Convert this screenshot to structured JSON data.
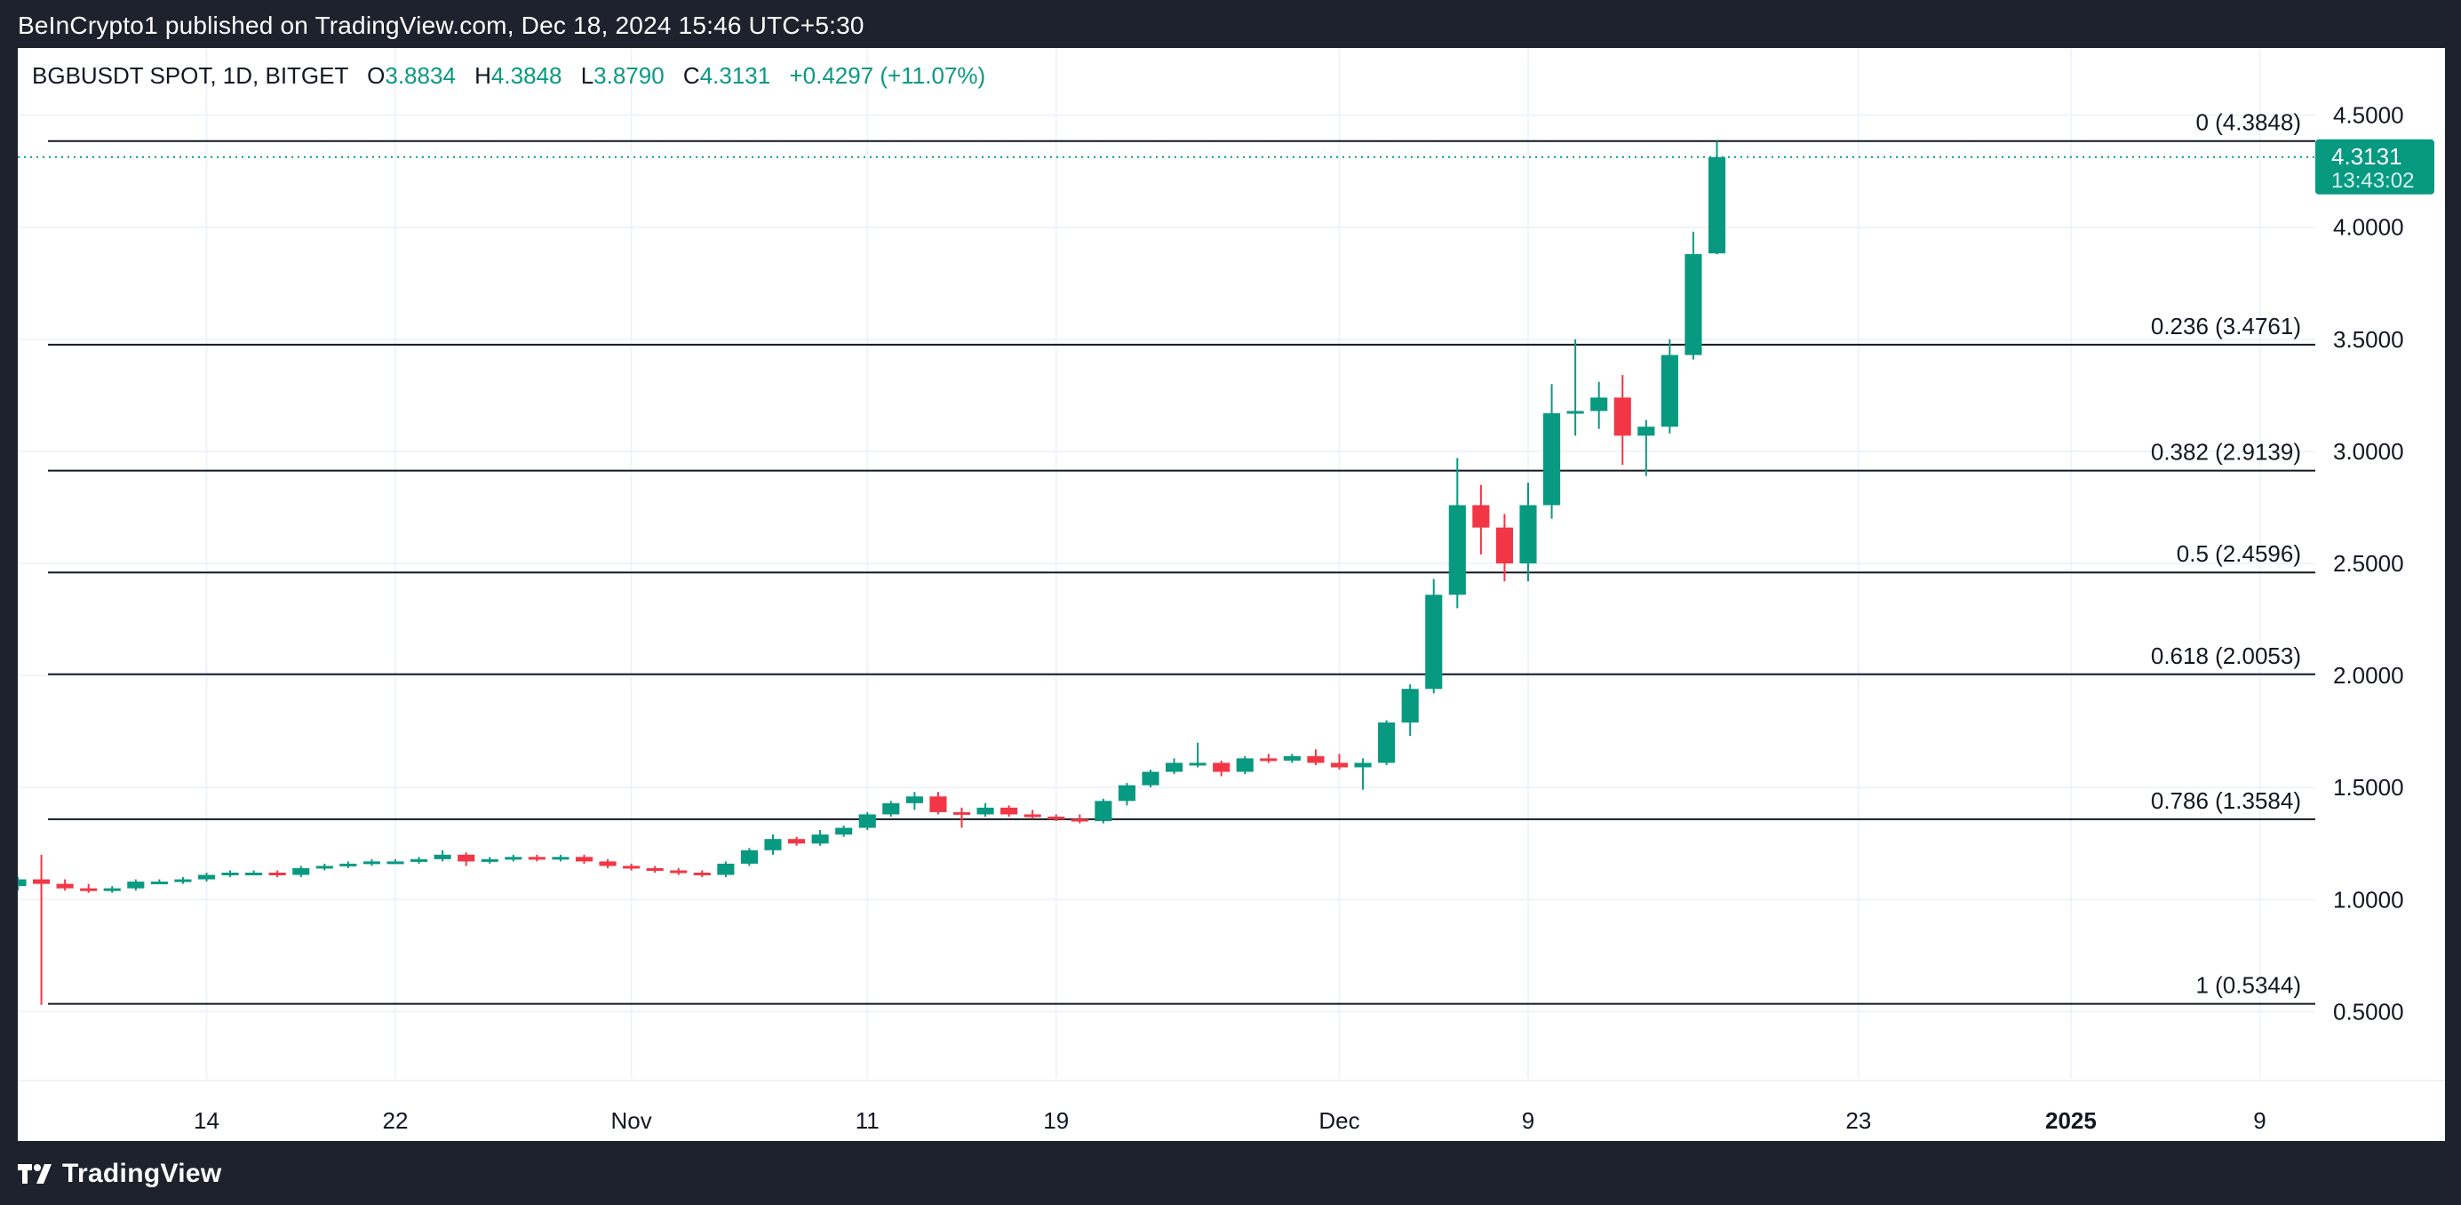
{
  "header": {
    "publisher": "BeInCrypto1 published on TradingView.com, Dec 18, 2024 15:46 UTC+5:30"
  },
  "footer": {
    "brand": "TradingView"
  },
  "legend": {
    "symbol": "BGBUSDT SPOT, 1D, BITGET",
    "o_label": "O",
    "o_value": "3.8834",
    "h_label": "H",
    "h_value": "4.3848",
    "l_label": "L",
    "l_value": "3.8790",
    "c_label": "C",
    "c_value": "4.3131",
    "change": "+0.4297 (+11.07%)"
  },
  "price_tag": {
    "price": "4.3131",
    "countdown": "13:43:02",
    "color": "#089981"
  },
  "colors": {
    "up": "#089981",
    "down": "#f23645",
    "grid": "#f0f3fa",
    "fib_line": "#131722"
  },
  "chart_data": {
    "type": "candlestick",
    "ylim": [
      0.2,
      4.8
    ],
    "y_ticks": [
      "4.5000",
      "4.0000",
      "3.5000",
      "3.0000",
      "2.5000",
      "2.0000",
      "1.5000",
      "1.0000",
      "0.5000"
    ],
    "y_tick_values": [
      4.5,
      4.0,
      3.5,
      3.0,
      2.5,
      2.0,
      1.5,
      1.0,
      0.5
    ],
    "x_ticks": [
      {
        "label": "14",
        "date": "2024-10-14"
      },
      {
        "label": "22",
        "date": "2024-10-22"
      },
      {
        "label": "Nov",
        "date": "2024-11-01"
      },
      {
        "label": "11",
        "date": "2024-11-11"
      },
      {
        "label": "19",
        "date": "2024-11-19"
      },
      {
        "label": "Dec",
        "date": "2024-12-01"
      },
      {
        "label": "9",
        "date": "2024-12-09"
      },
      {
        "label": "23",
        "date": "2024-12-23"
      },
      {
        "label": "2025",
        "date": "2025-01-01",
        "bold": true
      },
      {
        "label": "9",
        "date": "2025-01-09"
      }
    ],
    "x_start_date": "2024-10-06",
    "x_end_date": "2025-01-10",
    "fib_levels": [
      {
        "label": "0 (4.3848)",
        "value": 4.3848
      },
      {
        "label": "0.236 (3.4761)",
        "value": 3.4761
      },
      {
        "label": "0.382 (2.9139)",
        "value": 2.9139
      },
      {
        "label": "0.5 (2.4596)",
        "value": 2.4596
      },
      {
        "label": "0.618 (2.0053)",
        "value": 2.0053
      },
      {
        "label": "0.786 (1.3584)",
        "value": 1.3584
      },
      {
        "label": "1 (0.5344)",
        "value": 0.5344
      }
    ],
    "last_price": 4.3131,
    "candles": [
      {
        "date": "2024-10-06",
        "o": 1.06,
        "h": 1.1,
        "l": 1.04,
        "c": 1.09
      },
      {
        "date": "2024-10-07",
        "o": 1.09,
        "h": 1.2,
        "l": 0.53,
        "c": 1.07
      },
      {
        "date": "2024-10-08",
        "o": 1.07,
        "h": 1.09,
        "l": 1.04,
        "c": 1.05
      },
      {
        "date": "2024-10-09",
        "o": 1.05,
        "h": 1.07,
        "l": 1.03,
        "c": 1.04
      },
      {
        "date": "2024-10-10",
        "o": 1.04,
        "h": 1.06,
        "l": 1.03,
        "c": 1.05
      },
      {
        "date": "2024-10-11",
        "o": 1.05,
        "h": 1.09,
        "l": 1.04,
        "c": 1.08
      },
      {
        "date": "2024-10-12",
        "o": 1.08,
        "h": 1.09,
        "l": 1.07,
        "c": 1.08
      },
      {
        "date": "2024-10-13",
        "o": 1.08,
        "h": 1.1,
        "l": 1.07,
        "c": 1.09
      },
      {
        "date": "2024-10-14",
        "o": 1.09,
        "h": 1.12,
        "l": 1.08,
        "c": 1.11
      },
      {
        "date": "2024-10-15",
        "o": 1.11,
        "h": 1.13,
        "l": 1.1,
        "c": 1.12
      },
      {
        "date": "2024-10-16",
        "o": 1.12,
        "h": 1.13,
        "l": 1.11,
        "c": 1.12
      },
      {
        "date": "2024-10-17",
        "o": 1.12,
        "h": 1.13,
        "l": 1.1,
        "c": 1.11
      },
      {
        "date": "2024-10-18",
        "o": 1.11,
        "h": 1.15,
        "l": 1.1,
        "c": 1.14
      },
      {
        "date": "2024-10-19",
        "o": 1.14,
        "h": 1.16,
        "l": 1.13,
        "c": 1.15
      },
      {
        "date": "2024-10-20",
        "o": 1.15,
        "h": 1.17,
        "l": 1.14,
        "c": 1.16
      },
      {
        "date": "2024-10-21",
        "o": 1.16,
        "h": 1.18,
        "l": 1.15,
        "c": 1.17
      },
      {
        "date": "2024-10-22",
        "o": 1.17,
        "h": 1.18,
        "l": 1.16,
        "c": 1.17
      },
      {
        "date": "2024-10-23",
        "o": 1.17,
        "h": 1.19,
        "l": 1.16,
        "c": 1.18
      },
      {
        "date": "2024-10-24",
        "o": 1.18,
        "h": 1.22,
        "l": 1.17,
        "c": 1.2
      },
      {
        "date": "2024-10-25",
        "o": 1.2,
        "h": 1.21,
        "l": 1.15,
        "c": 1.17
      },
      {
        "date": "2024-10-26",
        "o": 1.17,
        "h": 1.19,
        "l": 1.16,
        "c": 1.18
      },
      {
        "date": "2024-10-27",
        "o": 1.18,
        "h": 1.2,
        "l": 1.17,
        "c": 1.19
      },
      {
        "date": "2024-10-28",
        "o": 1.19,
        "h": 1.2,
        "l": 1.17,
        "c": 1.18
      },
      {
        "date": "2024-10-29",
        "o": 1.18,
        "h": 1.2,
        "l": 1.17,
        "c": 1.19
      },
      {
        "date": "2024-10-30",
        "o": 1.19,
        "h": 1.2,
        "l": 1.16,
        "c": 1.17
      },
      {
        "date": "2024-10-31",
        "o": 1.17,
        "h": 1.18,
        "l": 1.14,
        "c": 1.15
      },
      {
        "date": "2024-11-01",
        "o": 1.15,
        "h": 1.16,
        "l": 1.13,
        "c": 1.14
      },
      {
        "date": "2024-11-02",
        "o": 1.14,
        "h": 1.15,
        "l": 1.12,
        "c": 1.13
      },
      {
        "date": "2024-11-03",
        "o": 1.13,
        "h": 1.14,
        "l": 1.11,
        "c": 1.12
      },
      {
        "date": "2024-11-04",
        "o": 1.12,
        "h": 1.13,
        "l": 1.1,
        "c": 1.11
      },
      {
        "date": "2024-11-05",
        "o": 1.11,
        "h": 1.17,
        "l": 1.1,
        "c": 1.16
      },
      {
        "date": "2024-11-06",
        "o": 1.16,
        "h": 1.23,
        "l": 1.15,
        "c": 1.22
      },
      {
        "date": "2024-11-07",
        "o": 1.22,
        "h": 1.29,
        "l": 1.2,
        "c": 1.27
      },
      {
        "date": "2024-11-08",
        "o": 1.27,
        "h": 1.28,
        "l": 1.24,
        "c": 1.25
      },
      {
        "date": "2024-11-09",
        "o": 1.25,
        "h": 1.31,
        "l": 1.24,
        "c": 1.29
      },
      {
        "date": "2024-11-10",
        "o": 1.29,
        "h": 1.33,
        "l": 1.28,
        "c": 1.32
      },
      {
        "date": "2024-11-11",
        "o": 1.32,
        "h": 1.39,
        "l": 1.31,
        "c": 1.38
      },
      {
        "date": "2024-11-12",
        "o": 1.38,
        "h": 1.44,
        "l": 1.37,
        "c": 1.43
      },
      {
        "date": "2024-11-13",
        "o": 1.43,
        "h": 1.48,
        "l": 1.4,
        "c": 1.46
      },
      {
        "date": "2024-11-14",
        "o": 1.46,
        "h": 1.48,
        "l": 1.38,
        "c": 1.39
      },
      {
        "date": "2024-11-15",
        "o": 1.39,
        "h": 1.41,
        "l": 1.32,
        "c": 1.38
      },
      {
        "date": "2024-11-16",
        "o": 1.38,
        "h": 1.43,
        "l": 1.37,
        "c": 1.41
      },
      {
        "date": "2024-11-17",
        "o": 1.41,
        "h": 1.42,
        "l": 1.37,
        "c": 1.38
      },
      {
        "date": "2024-11-18",
        "o": 1.38,
        "h": 1.4,
        "l": 1.36,
        "c": 1.37
      },
      {
        "date": "2024-11-19",
        "o": 1.37,
        "h": 1.38,
        "l": 1.35,
        "c": 1.36
      },
      {
        "date": "2024-11-20",
        "o": 1.36,
        "h": 1.38,
        "l": 1.34,
        "c": 1.35
      },
      {
        "date": "2024-11-21",
        "o": 1.35,
        "h": 1.45,
        "l": 1.34,
        "c": 1.44
      },
      {
        "date": "2024-11-22",
        "o": 1.44,
        "h": 1.52,
        "l": 1.42,
        "c": 1.51
      },
      {
        "date": "2024-11-23",
        "o": 1.51,
        "h": 1.58,
        "l": 1.5,
        "c": 1.57
      },
      {
        "date": "2024-11-24",
        "o": 1.57,
        "h": 1.63,
        "l": 1.56,
        "c": 1.61
      },
      {
        "date": "2024-11-25",
        "o": 1.61,
        "h": 1.7,
        "l": 1.59,
        "c": 1.61
      },
      {
        "date": "2024-11-26",
        "o": 1.61,
        "h": 1.62,
        "l": 1.55,
        "c": 1.57
      },
      {
        "date": "2024-11-27",
        "o": 1.57,
        "h": 1.64,
        "l": 1.56,
        "c": 1.63
      },
      {
        "date": "2024-11-28",
        "o": 1.63,
        "h": 1.65,
        "l": 1.61,
        "c": 1.62
      },
      {
        "date": "2024-11-29",
        "o": 1.62,
        "h": 1.65,
        "l": 1.61,
        "c": 1.64
      },
      {
        "date": "2024-11-30",
        "o": 1.64,
        "h": 1.67,
        "l": 1.6,
        "c": 1.61
      },
      {
        "date": "2024-12-01",
        "o": 1.61,
        "h": 1.65,
        "l": 1.58,
        "c": 1.59
      },
      {
        "date": "2024-12-02",
        "o": 1.59,
        "h": 1.63,
        "l": 1.49,
        "c": 1.61
      },
      {
        "date": "2024-12-03",
        "o": 1.61,
        "h": 1.8,
        "l": 1.6,
        "c": 1.79
      },
      {
        "date": "2024-12-04",
        "o": 1.79,
        "h": 1.96,
        "l": 1.73,
        "c": 1.94
      },
      {
        "date": "2024-12-05",
        "o": 1.94,
        "h": 2.43,
        "l": 1.92,
        "c": 2.36
      },
      {
        "date": "2024-12-06",
        "o": 2.36,
        "h": 2.97,
        "l": 2.3,
        "c": 2.76
      },
      {
        "date": "2024-12-07",
        "o": 2.76,
        "h": 2.85,
        "l": 2.54,
        "c": 2.66
      },
      {
        "date": "2024-12-08",
        "o": 2.66,
        "h": 2.72,
        "l": 2.42,
        "c": 2.5
      },
      {
        "date": "2024-12-09",
        "o": 2.5,
        "h": 2.86,
        "l": 2.42,
        "c": 2.76
      },
      {
        "date": "2024-12-10",
        "o": 2.76,
        "h": 3.3,
        "l": 2.7,
        "c": 3.17
      },
      {
        "date": "2024-12-11",
        "o": 3.17,
        "h": 3.5,
        "l": 3.07,
        "c": 3.18
      },
      {
        "date": "2024-12-12",
        "o": 3.18,
        "h": 3.31,
        "l": 3.1,
        "c": 3.24
      },
      {
        "date": "2024-12-13",
        "o": 3.24,
        "h": 3.34,
        "l": 2.94,
        "c": 3.07
      },
      {
        "date": "2024-12-14",
        "o": 3.07,
        "h": 3.14,
        "l": 2.89,
        "c": 3.11
      },
      {
        "date": "2024-12-15",
        "o": 3.11,
        "h": 3.5,
        "l": 3.08,
        "c": 3.43
      },
      {
        "date": "2024-12-16",
        "o": 3.43,
        "h": 3.98,
        "l": 3.41,
        "c": 3.88
      },
      {
        "date": "2024-12-17",
        "o": 3.8834,
        "h": 4.3848,
        "l": 3.879,
        "c": 4.3131
      }
    ]
  }
}
